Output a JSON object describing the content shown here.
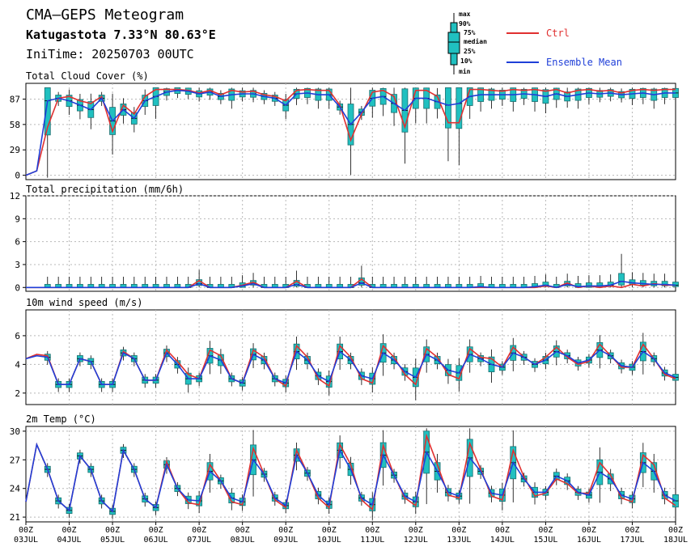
{
  "header": {
    "title": "CMA–GEPS Meteogram",
    "location": "Katugastota 7.33°N 80.63°E",
    "init_time": "IniTime: 20250703 00UTC"
  },
  "legend": {
    "box_labels": [
      "max",
      "90%",
      "75%",
      "median",
      "25%",
      "10%",
      "min"
    ],
    "ctrl_label": "Ctrl",
    "mean_label": "Ensemble Mean",
    "ctrl_color": "#e03030",
    "mean_color": "#1f3fd8",
    "box_fill": "#20c0c0",
    "box_edge": "#1a6e6e"
  },
  "time_axis": {
    "labels_top": [
      "00Z",
      "00Z",
      "00Z",
      "00Z",
      "00Z",
      "00Z",
      "00Z",
      "00Z",
      "00Z",
      "00Z",
      "00Z",
      "00Z",
      "00Z",
      "00Z",
      "00Z",
      "00Z"
    ],
    "labels_bottom": [
      "03JUL",
      "04JUL",
      "05JUL",
      "06JUL",
      "07JUL",
      "08JUL",
      "09JUL",
      "10JUL",
      "11JUL",
      "12JUL",
      "13JUL",
      "14JUL",
      "15JUL",
      "16JUL",
      "17JUL",
      "18JUL"
    ],
    "days_span": 15,
    "step_hours": 6
  },
  "chart_data": [
    {
      "type": "line",
      "title": "Total Cloud Cover (%)",
      "ylim": [
        -5,
        105
      ],
      "yticks": [
        0,
        29,
        58,
        87
      ],
      "grid": true,
      "series": [
        {
          "name": "Ctrl",
          "values": [
            0,
            5,
            55,
            88,
            90,
            85,
            82,
            90,
            50,
            80,
            70,
            90,
            98,
            98,
            98,
            97,
            94,
            97,
            92,
            97,
            95,
            96,
            92,
            90,
            85,
            97,
            98,
            97,
            97,
            80,
            40,
            70,
            95,
            97,
            90,
            55,
            97,
            97,
            90,
            60,
            60,
            98,
            98,
            97,
            96,
            98,
            97,
            98,
            96,
            98,
            94,
            97,
            98,
            96,
            97,
            94,
            97,
            98,
            97,
            98,
            98,
            97
          ]
        },
        {
          "name": "Ensemble Mean",
          "values": [
            0,
            5,
            85,
            88,
            85,
            80,
            75,
            88,
            62,
            75,
            65,
            85,
            90,
            95,
            97,
            96,
            93,
            95,
            90,
            92,
            93,
            93,
            90,
            88,
            80,
            93,
            94,
            92,
            92,
            78,
            58,
            72,
            88,
            90,
            82,
            74,
            88,
            88,
            84,
            80,
            82,
            90,
            92,
            92,
            92,
            92,
            93,
            92,
            90,
            93,
            90,
            92,
            94,
            93,
            94,
            92,
            93,
            94,
            92,
            94,
            94,
            93
          ]
        }
      ]
    },
    {
      "type": "line",
      "title": "Total precipitation (mm/6h)",
      "ylim": [
        -0.5,
        12
      ],
      "yticks": [
        0,
        3,
        6,
        9,
        12
      ],
      "grid": true,
      "series": [
        {
          "name": "Ctrl",
          "values": [
            0,
            0,
            0,
            0,
            0,
            0,
            0,
            0,
            0,
            0,
            0,
            0,
            0,
            0,
            0,
            0,
            0.9,
            0,
            0,
            0,
            0.3,
            0.7,
            0,
            0,
            0,
            0.8,
            0,
            0,
            0,
            0,
            0,
            1.1,
            0,
            0,
            0,
            0,
            0,
            0,
            0,
            0,
            0,
            0,
            0,
            0,
            0,
            0,
            0,
            0,
            0.2,
            0,
            0.6,
            0,
            0.2,
            0,
            0.2,
            0,
            0.4,
            0.2,
            0.5,
            0.3,
            0.3,
            0.3
          ]
        },
        {
          "name": "Ensemble Mean",
          "values": [
            0,
            0,
            0,
            0,
            0,
            0,
            0,
            0,
            0,
            0,
            0,
            0,
            0,
            0,
            0,
            0,
            0.5,
            0,
            0,
            0,
            0.2,
            0.5,
            0,
            0,
            0,
            0.4,
            0,
            0,
            0,
            0,
            0,
            0.6,
            0,
            0,
            0,
            0,
            0,
            0,
            0,
            0,
            0,
            0,
            0.1,
            0,
            0,
            0,
            0,
            0.1,
            0.3,
            0,
            0.4,
            0.1,
            0.2,
            0.2,
            0.3,
            0.8,
            0.6,
            0.5,
            0.4,
            0.4,
            0.3,
            0.4
          ]
        }
      ]
    },
    {
      "type": "line",
      "title": "10m wind speed (m/s)",
      "ylim": [
        1.2,
        7.8
      ],
      "yticks": [
        2,
        4,
        6
      ],
      "grid": true,
      "series": [
        {
          "name": "Ctrl",
          "values": [
            4.4,
            4.7,
            4.6,
            2.6,
            2.6,
            4.4,
            4.2,
            2.6,
            2.6,
            4.9,
            4.4,
            2.9,
            2.9,
            5.0,
            4.2,
            3.3,
            3.0,
            5.0,
            4.6,
            3.0,
            2.7,
            5.0,
            4.5,
            3.0,
            2.5,
            5.3,
            4.5,
            3.0,
            2.5,
            5.3,
            4.5,
            3.0,
            2.7,
            5.3,
            4.5,
            3.3,
            2.6,
            5.1,
            4.5,
            3.3,
            3.0,
            5.1,
            4.5,
            4.4,
            3.8,
            5.2,
            4.5,
            4.0,
            4.5,
            5.2,
            4.5,
            4.0,
            4.2,
            5.4,
            4.6,
            3.8,
            3.8,
            5.4,
            4.4,
            3.3,
            3.0,
            3.0
          ]
        },
        {
          "name": "Ensemble Mean",
          "values": [
            4.4,
            4.6,
            4.5,
            2.6,
            2.6,
            4.4,
            4.2,
            2.6,
            2.6,
            4.8,
            4.4,
            2.9,
            2.9,
            4.8,
            4.0,
            3.0,
            3.0,
            4.6,
            4.3,
            3.0,
            2.7,
            4.7,
            4.3,
            3.0,
            2.7,
            4.9,
            4.3,
            3.2,
            2.8,
            4.9,
            4.3,
            3.2,
            3.0,
            4.8,
            4.3,
            3.5,
            3.1,
            4.7,
            4.3,
            3.6,
            3.4,
            4.7,
            4.4,
            4.0,
            3.8,
            4.8,
            4.5,
            4.0,
            4.3,
            4.9,
            4.6,
            4.1,
            4.3,
            5.0,
            4.6,
            3.9,
            3.8,
            4.9,
            4.4,
            3.4,
            3.1,
            3.1
          ]
        }
      ]
    },
    {
      "type": "line",
      "title": "2m Temp (°C)",
      "ylim": [
        20.5,
        30.5
      ],
      "yticks": [
        21,
        24,
        27,
        30
      ],
      "grid": true,
      "series": [
        {
          "name": "Ctrl",
          "values": [
            22.6,
            28.6,
            26.0,
            22.7,
            21.7,
            27.4,
            26.0,
            22.7,
            21.6,
            28.0,
            26.0,
            22.9,
            22.0,
            26.8,
            24.0,
            22.5,
            22.3,
            26.5,
            24.8,
            22.6,
            22.3,
            28.2,
            25.5,
            22.8,
            22.0,
            28.0,
            25.6,
            23.0,
            22.0,
            28.6,
            26.5,
            22.8,
            21.8,
            28.5,
            25.4,
            23.0,
            22.2,
            29.5,
            26.5,
            23.3,
            23.0,
            28.7,
            26.0,
            23.2,
            22.8,
            28.0,
            25.2,
            23.2,
            23.5,
            25.0,
            24.5,
            23.5,
            23.5,
            26.7,
            25.4,
            23.0,
            22.6,
            27.5,
            26.5,
            23.0,
            22.2,
            22.0
          ]
        },
        {
          "name": "Ensemble Mean",
          "values": [
            22.6,
            28.6,
            26.0,
            22.7,
            21.7,
            27.4,
            26.0,
            22.7,
            21.6,
            28.0,
            26.0,
            22.9,
            22.0,
            26.5,
            24.0,
            22.8,
            22.7,
            25.8,
            24.8,
            23.0,
            22.6,
            27.0,
            25.5,
            23.0,
            22.2,
            27.5,
            25.6,
            23.3,
            22.3,
            28.0,
            26.0,
            23.0,
            22.3,
            27.5,
            25.4,
            23.2,
            22.6,
            27.8,
            25.8,
            23.6,
            23.2,
            27.2,
            25.8,
            23.5,
            23.3,
            26.7,
            25.0,
            23.6,
            23.6,
            25.3,
            24.8,
            23.6,
            23.3,
            25.7,
            25.0,
            23.3,
            22.9,
            26.7,
            25.8,
            23.3,
            22.7,
            22.6
          ]
        }
      ]
    }
  ]
}
